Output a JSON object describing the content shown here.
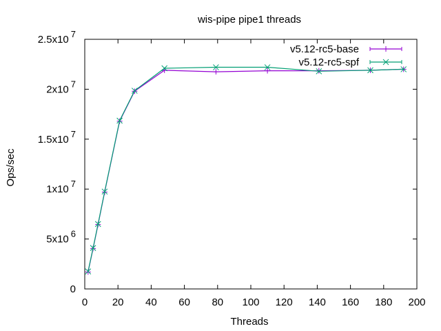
{
  "chart_data": {
    "type": "line",
    "title": "wis-pipe pipe1 threads",
    "xlabel": "Threads",
    "ylabel": "Ops/sec",
    "xlim": [
      0,
      200
    ],
    "ylim": [
      0,
      25000000
    ],
    "x_ticks": [
      {
        "value": 0,
        "label": "0"
      },
      {
        "value": 20,
        "label": "20"
      },
      {
        "value": 40,
        "label": "40"
      },
      {
        "value": 60,
        "label": "60"
      },
      {
        "value": 80,
        "label": "80"
      },
      {
        "value": 100,
        "label": "100"
      },
      {
        "value": 120,
        "label": "120"
      },
      {
        "value": 140,
        "label": "140"
      },
      {
        "value": 160,
        "label": "160"
      },
      {
        "value": 180,
        "label": "180"
      },
      {
        "value": 200,
        "label": "200"
      }
    ],
    "y_ticks": [
      {
        "value": 0,
        "mantissa": "0",
        "exponent": ""
      },
      {
        "value": 5000000,
        "mantissa": "5x10",
        "exponent": "6"
      },
      {
        "value": 10000000,
        "mantissa": "1x10",
        "exponent": "7"
      },
      {
        "value": 15000000,
        "mantissa": "1.5x10",
        "exponent": "7"
      },
      {
        "value": 20000000,
        "mantissa": "2x10",
        "exponent": "7"
      },
      {
        "value": 25000000,
        "mantissa": "2.5x10",
        "exponent": "7"
      }
    ],
    "grid": false,
    "legend_position": "top-right",
    "series": [
      {
        "name": "v5.12-rc5-base",
        "color": "#9400d3",
        "marker": "plus",
        "x": [
          2,
          5,
          8,
          12,
          21,
          30,
          48,
          79,
          110,
          141,
          172,
          192
        ],
        "y": [
          1700000,
          4050000,
          6450000,
          9700000,
          16800000,
          19800000,
          21900000,
          21750000,
          21850000,
          21850000,
          21900000,
          22000000
        ]
      },
      {
        "name": "v5.12-rc5-spf",
        "color": "#009e73",
        "marker": "cross",
        "x": [
          2,
          5,
          8,
          12,
          21,
          30,
          48,
          79,
          110,
          141,
          172,
          192
        ],
        "y": [
          1750000,
          4100000,
          6500000,
          9750000,
          16850000,
          19850000,
          22100000,
          22200000,
          22200000,
          21800000,
          21900000,
          22000000
        ]
      }
    ]
  }
}
